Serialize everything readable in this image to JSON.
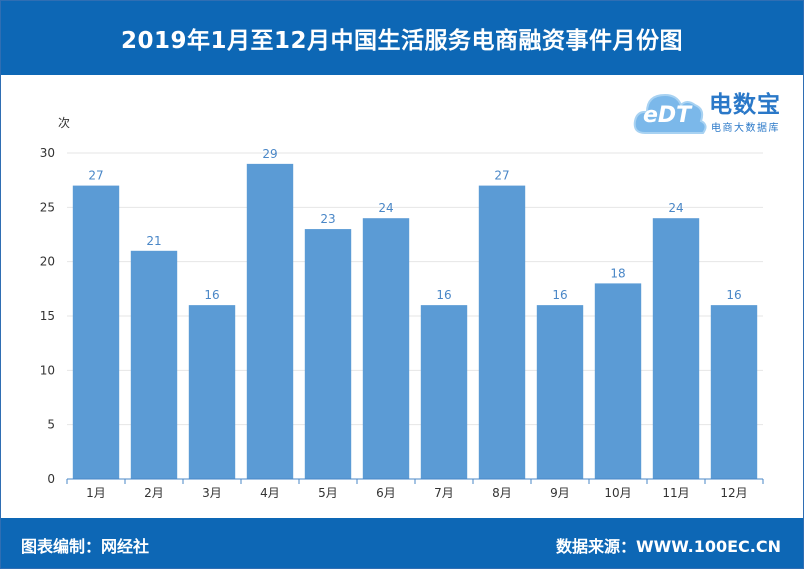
{
  "header": {
    "title": "2019年1月至12月中国生活服务电商融资事件月份图"
  },
  "logo": {
    "brand": "电数宝",
    "sub": "电商大数据库",
    "mark": "eDT"
  },
  "footer": {
    "left": "图表编制：网经社",
    "right": "数据来源：WWW.100EC.CN"
  },
  "colors": {
    "header_bg": "#0d67b5",
    "bar": "#5b9bd5",
    "label": "#4a87c7"
  },
  "chart_data": {
    "type": "bar",
    "title": "2019年1月至12月中国生活服务电商融资事件月份图",
    "ylabel": "次",
    "xlabel": "",
    "categories": [
      "1月",
      "2月",
      "3月",
      "4月",
      "5月",
      "6月",
      "7月",
      "8月",
      "9月",
      "10月",
      "11月",
      "12月"
    ],
    "values": [
      27,
      21,
      16,
      29,
      23,
      24,
      16,
      27,
      16,
      18,
      24,
      16
    ],
    "ylim": [
      0,
      30
    ],
    "yticks": [
      0,
      5,
      10,
      15,
      20,
      25,
      30
    ],
    "grid": true,
    "legend": "none"
  }
}
